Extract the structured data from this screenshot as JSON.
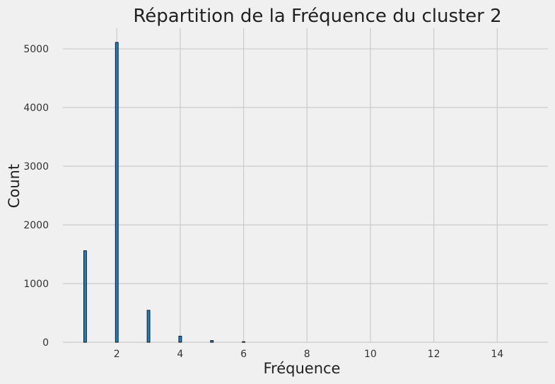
{
  "chart_data": {
    "type": "bar",
    "title": "Répartition de la Fréquence du cluster 2",
    "xlabel": "Fréquence",
    "ylabel": "Count",
    "x": [
      1,
      2,
      3,
      4,
      5,
      6
    ],
    "values": [
      1560,
      5110,
      545,
      105,
      30,
      10
    ],
    "xlim": [
      0.3,
      15.6
    ],
    "ylim": [
      0,
      5350
    ],
    "xticks": [
      2,
      4,
      6,
      8,
      10,
      12,
      14
    ],
    "yticks": [
      0,
      1000,
      2000,
      3000,
      4000,
      5000
    ],
    "grid": true,
    "bar_color": "#1a7fc1",
    "bar_edge_color": "#000000",
    "background_color": "#f0f0f0",
    "grid_color": "#cbcbcb"
  }
}
